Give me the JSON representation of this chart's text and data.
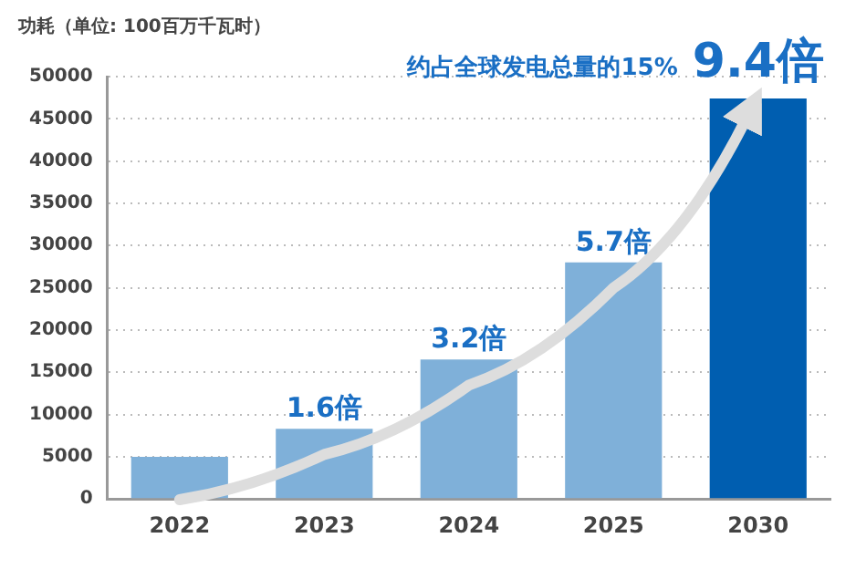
{
  "chart_data": {
    "type": "bar",
    "ylabel": "功耗（单位: 100百万千瓦时）",
    "categories": [
      "2022",
      "2023",
      "2024",
      "2025",
      "2030"
    ],
    "values": [
      5000,
      8300,
      16500,
      28000,
      47400
    ],
    "colors": [
      "#7fb0d9",
      "#7fb0d9",
      "#7fb0d9",
      "#7fb0d9",
      "#005eb0"
    ],
    "annotations": [
      {
        "text": "1.6倍",
        "x": "2023",
        "y": 8300
      },
      {
        "text": "3.2倍",
        "x": "2024",
        "y": 16500
      },
      {
        "text": "5.7倍",
        "x": "2025",
        "y": 28000
      },
      {
        "text": "9.4倍",
        "x": "2030",
        "y": 47400
      },
      "约占全球发电总量的15%"
    ],
    "ylim": [
      0,
      50000
    ],
    "yticks": [
      0,
      5000,
      10000,
      15000,
      20000,
      25000,
      30000,
      35000,
      40000,
      45000,
      50000
    ],
    "grid": "y",
    "legend": false
  }
}
